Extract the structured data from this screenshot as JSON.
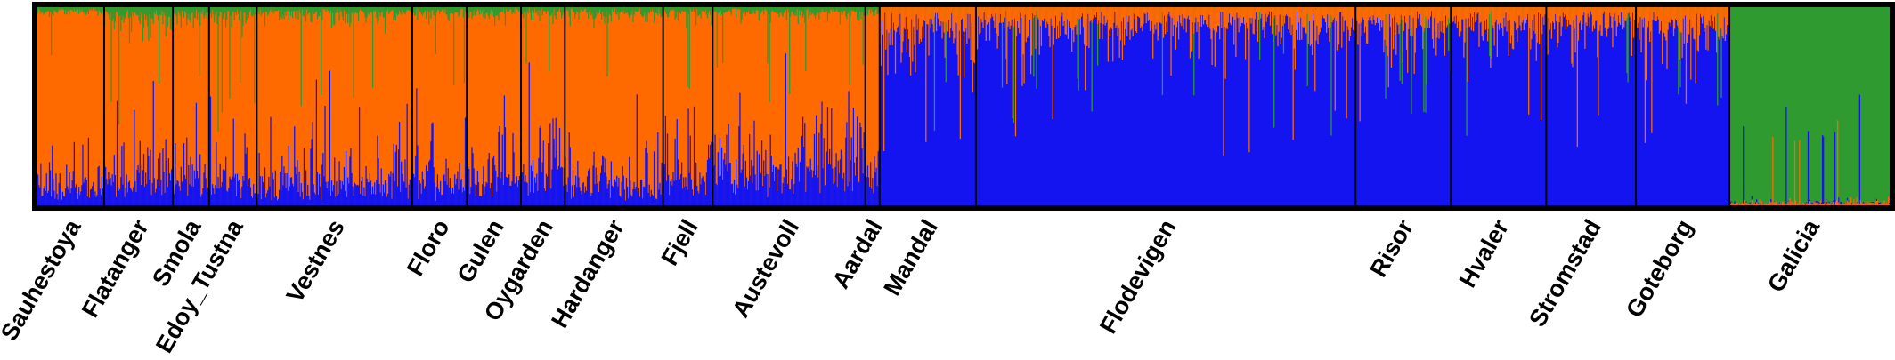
{
  "chart_data": {
    "type": "bar",
    "stacked": true,
    "grid": false,
    "legend": "none",
    "ylim": [
      0,
      1
    ],
    "series": [
      {
        "color": "#1414f0"
      },
      {
        "color": "#ff6a00"
      },
      {
        "color": "#2e9a30"
      }
    ],
    "frame_color": "#000000",
    "populations": [
      {
        "name": "Sauhestoya",
        "n": 70,
        "profile": [
          0.1,
          0.88,
          0.02
        ]
      },
      {
        "name": "Flatanger",
        "n": 72,
        "profile": [
          0.13,
          0.82,
          0.05
        ]
      },
      {
        "name": "Smola",
        "n": 38,
        "profile": [
          0.12,
          0.84,
          0.04
        ]
      },
      {
        "name": "Edoy_Tustna",
        "n": 50,
        "profile": [
          0.12,
          0.84,
          0.04
        ]
      },
      {
        "name": "Vestnes",
        "n": 163,
        "profile": [
          0.1,
          0.87,
          0.03
        ]
      },
      {
        "name": "Floro",
        "n": 57,
        "profile": [
          0.12,
          0.85,
          0.03
        ]
      },
      {
        "name": "Gulen",
        "n": 57,
        "profile": [
          0.15,
          0.82,
          0.03
        ]
      },
      {
        "name": "Oygarden",
        "n": 46,
        "profile": [
          0.18,
          0.79,
          0.03
        ]
      },
      {
        "name": "Hardanger",
        "n": 103,
        "profile": [
          0.1,
          0.87,
          0.03
        ]
      },
      {
        "name": "Fjell",
        "n": 52,
        "profile": [
          0.14,
          0.83,
          0.03
        ]
      },
      {
        "name": "Austevoll",
        "n": 160,
        "profile": [
          0.2,
          0.77,
          0.03
        ]
      },
      {
        "name": "Aardal",
        "n": 15,
        "profile": [
          0.18,
          0.79,
          0.03
        ]
      },
      {
        "name": "Mandal",
        "n": 101,
        "profile": [
          0.86,
          0.12,
          0.02
        ]
      },
      {
        "name": "Flodevigen",
        "n": 398,
        "profile": [
          0.9,
          0.09,
          0.01
        ]
      },
      {
        "name": "Risor",
        "n": 100,
        "profile": [
          0.9,
          0.09,
          0.01
        ]
      },
      {
        "name": "Hvaler",
        "n": 100,
        "profile": [
          0.9,
          0.09,
          0.01
        ]
      },
      {
        "name": "Stromstad",
        "n": 94,
        "profile": [
          0.9,
          0.09,
          0.01
        ]
      },
      {
        "name": "Goteborg",
        "n": 98,
        "profile": [
          0.87,
          0.11,
          0.02
        ]
      },
      {
        "name": "Galicia",
        "n": 168,
        "profile": [
          0.01,
          0.01,
          0.98
        ]
      }
    ]
  }
}
